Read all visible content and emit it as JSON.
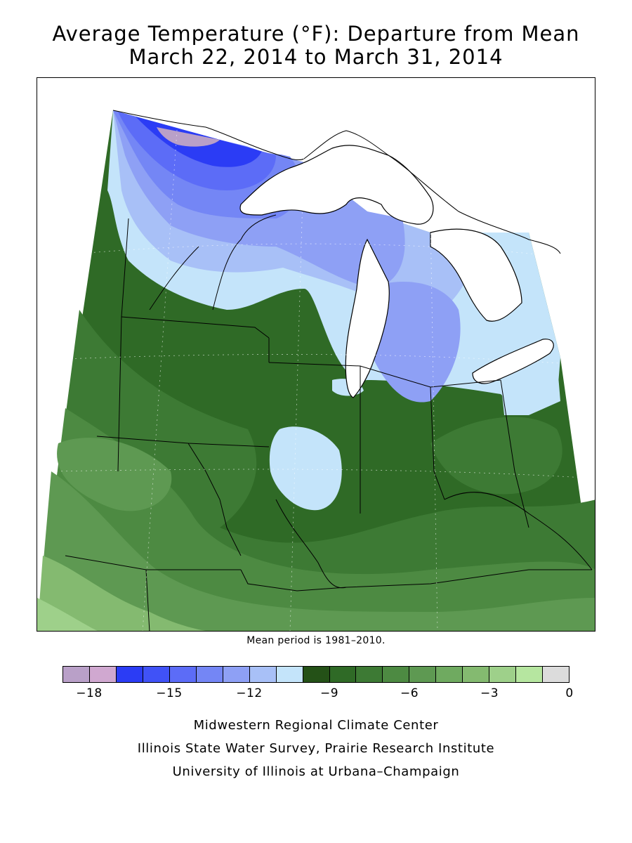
{
  "title": {
    "line1": "Average Temperature (°F): Departure from Mean",
    "line2": "March 22, 2014 to March 31, 2014"
  },
  "mean_note": "Mean period is 1981–2010.",
  "legend": {
    "colors": [
      "#b9a0c8",
      "#d0a8d0",
      "#2b3cf5",
      "#4052f7",
      "#5c6cf7",
      "#7486f5",
      "#8ea0f5",
      "#a8c0f7",
      "#c4e4fa",
      "#245117",
      "#2f6a26",
      "#3d7a34",
      "#4d8a42",
      "#5e9952",
      "#6faa60",
      "#84ba70",
      "#9ed08a",
      "#b6e6a0",
      "#dcdcdc"
    ],
    "ticks": [
      "−18",
      "−15",
      "−12",
      "−9",
      "−6",
      "−3",
      "0"
    ]
  },
  "colors": {
    "lake": "#ffffff",
    "outline": "#000000"
  },
  "credits": [
    "Midwestern Regional Climate Center",
    "Illinois State Water Survey, Prairie Research Institute",
    "University of Illinois at Urbana–Champaign"
  ]
}
